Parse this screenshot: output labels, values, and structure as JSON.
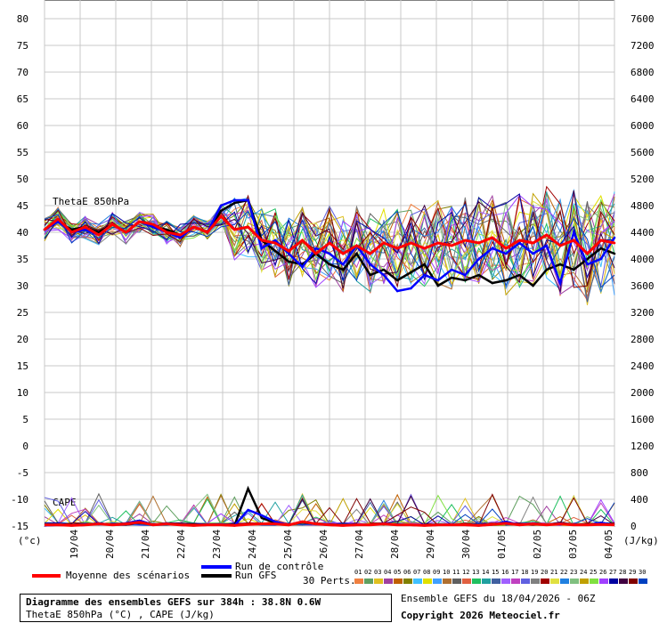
{
  "chart_data": {
    "type": "line",
    "left_axis": {
      "ticks": [
        80,
        75,
        70,
        65,
        60,
        55,
        50,
        45,
        40,
        35,
        30,
        25,
        20,
        15,
        10,
        5,
        0,
        -5,
        -10,
        -15
      ],
      "ylim": [
        -15,
        80
      ],
      "unit_label": "(°c)"
    },
    "right_axis": {
      "ticks": [
        7600,
        7200,
        6800,
        6400,
        6000,
        5600,
        5200,
        4800,
        4400,
        4000,
        3600,
        3200,
        2800,
        2400,
        2000,
        1600,
        1200,
        800,
        400,
        0
      ],
      "unit_label": "(J/kg)"
    },
    "x_labels": [
      "19/04",
      "20/04",
      "21/04",
      "22/04",
      "23/04",
      "24/04",
      "25/04",
      "26/04",
      "27/04",
      "28/04",
      "29/04",
      "30/04",
      "01/05",
      "02/05",
      "03/05",
      "04/05"
    ],
    "panel_labels": {
      "thetae": "ThetaE 850hPa",
      "cape": "CAPE"
    },
    "grid": true,
    "series": [
      {
        "name": "Moyenne des scénarios",
        "color": "#ff0000",
        "thetae": [
          40.5,
          42.5,
          40,
          41,
          39.5,
          41.5,
          40,
          42,
          41.5,
          40,
          39.5,
          41,
          40,
          43,
          40.5,
          41,
          38.5,
          38,
          36.5,
          38.5,
          36,
          38,
          36,
          37.5,
          36,
          38,
          37,
          38,
          37,
          38,
          37.5,
          38.5,
          38,
          39,
          37,
          38.5,
          38,
          39.5,
          37.5,
          38.5,
          36,
          38.5,
          38
        ],
        "cape": [
          -14.8,
          -14.8,
          -14.9,
          -14.8,
          -14.6,
          -14.8,
          -14.6,
          -14.3,
          -14.8,
          -14.6,
          -14.8,
          -14.9,
          -14.8,
          -14.8,
          -14.9,
          -14.7,
          -14.6,
          -14.6,
          -14.8,
          -14.2,
          -14.6,
          -14.8,
          -14.9,
          -14.8,
          -14.8,
          -14.6,
          -14.8,
          -14.8,
          -14.9,
          -14.8,
          -14.8,
          -14.8,
          -14.9,
          -14.7,
          -14.5,
          -14.8,
          -14.6,
          -14.8,
          -14.6,
          -14.8,
          -14.8,
          -14.7,
          -14.8
        ]
      },
      {
        "name": "Run de contrôle",
        "color": "#0000ff",
        "thetae": [
          40.5,
          42,
          40,
          40.5,
          39.5,
          41.5,
          40,
          42,
          41,
          40,
          39,
          41,
          40,
          45,
          46,
          46,
          37,
          38.5,
          36,
          33.5,
          37,
          36,
          34,
          37.5,
          34,
          32,
          29,
          29.5,
          32,
          31,
          33,
          32,
          35,
          37,
          36,
          38,
          36,
          37.5,
          30.5,
          40,
          34,
          35,
          39
        ],
        "cape": [
          -14.9,
          -14.8,
          -14.9,
          -14.8,
          -14.5,
          -14.8,
          -14.5,
          -14,
          -14.8,
          -14.5,
          -14.8,
          -14.9,
          -14.8,
          -14.7,
          -14.9,
          -12,
          -13,
          -14.2,
          -14.8,
          -14.2,
          -14.6,
          -14.8,
          -14.9,
          -14.8,
          -14.8,
          -14.5,
          -14.8,
          -14.8,
          -14.9,
          -14.8,
          -14.8,
          -14.8,
          -14.9,
          -14.7,
          -14.2,
          -14.8,
          -14.5,
          -14.8,
          -14.5,
          -14.8,
          -14.8,
          -14.4,
          -14.8
        ]
      },
      {
        "name": "Run GFS",
        "color": "#000000",
        "thetae": [
          40.5,
          42,
          40.5,
          41,
          40,
          41.5,
          40,
          42,
          41,
          40.5,
          39.5,
          41,
          40,
          44,
          45.5,
          46,
          38.5,
          36.5,
          34.5,
          34,
          36,
          34,
          33,
          36,
          32,
          33,
          31,
          32.5,
          34,
          30,
          31.5,
          31,
          32,
          30.5,
          31,
          32,
          30,
          33,
          34,
          33,
          35,
          37,
          36
        ],
        "cape": [
          -14.9,
          -14.8,
          -14.9,
          -14.8,
          -14.5,
          -14.8,
          -14.5,
          -14,
          -14.8,
          -14.5,
          -14.8,
          -14.9,
          -14.8,
          -14.7,
          -14.9,
          -8,
          -13.5,
          -14.4,
          -14.8,
          -14.3,
          -14.6,
          -14.8,
          -14.9,
          -14.8,
          -14.8,
          -14.5,
          -14.8,
          -14.8,
          -14.9,
          -14.8,
          -14.8,
          -14.8,
          -14.9,
          -14.7,
          -14.3,
          -14.8,
          -14.5,
          -14.8,
          -14.4,
          -14.8,
          -14.8,
          -14.4,
          -14.8
        ]
      }
    ]
  },
  "legend": {
    "mean_label": "Moyenne des scénarios",
    "control_label": "Run de contrôle",
    "gfs_label": "Run GFS",
    "perts_label": "30 Perts.",
    "pert_numbers": [
      "01",
      "02",
      "03",
      "04",
      "05",
      "06",
      "07",
      "08",
      "09",
      "10",
      "11",
      "12",
      "13",
      "14",
      "15",
      "16",
      "17",
      "18",
      "19",
      "20",
      "21",
      "22",
      "23",
      "24",
      "25",
      "26",
      "27",
      "28",
      "29",
      "30"
    ],
    "pert_colors": [
      "#f08040",
      "#60a060",
      "#e0c020",
      "#a040a0",
      "#c06000",
      "#808000",
      "#40c0ff",
      "#e0e000",
      "#40a0ff",
      "#b07030",
      "#606060",
      "#e06040",
      "#20c060",
      "#20a0a0",
      "#4060a0",
      "#a060ff",
      "#c040c0",
      "#6060e0",
      "#808080",
      "#a00000",
      "#e0e040",
      "#2080e0",
      "#80c080",
      "#c0a000",
      "#80e040",
      "#a040ff",
      "#0000a0",
      "#400040",
      "#800000",
      "#0040c0"
    ]
  },
  "caption": {
    "line1": "Diagramme des ensembles GEFS sur 384h : 38.8N 0.6W",
    "line2": "ThetaE 850hPa (°C) , CAPE (J/kg)"
  },
  "info": {
    "run": "Ensemble GEFS du 18/04/2026 - 06Z",
    "copyright": "Copyright 2026 Meteociel.fr"
  }
}
